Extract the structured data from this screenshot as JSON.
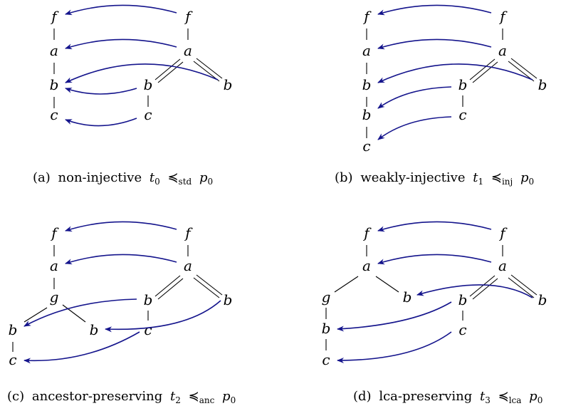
{
  "colors": {
    "arrow": "#14148c",
    "edge": "#000000",
    "background": "#ffffff"
  },
  "panels": [
    {
      "caption": {
        "tag": "(a)",
        "desc": "non-injective",
        "t": "t",
        "tsub": "0",
        "rel": "≼",
        "rsub": "std",
        "p": "p",
        "psub": "0"
      },
      "tree_t_labels": [
        "f",
        "a",
        "b",
        "c"
      ],
      "tree_p_labels": [
        "f",
        "a",
        "b",
        "b",
        "c"
      ]
    },
    {
      "caption": {
        "tag": "(b)",
        "desc": "weakly-injective",
        "t": "t",
        "tsub": "1",
        "rel": "≼",
        "rsub": "inj",
        "p": "p",
        "psub": "0"
      },
      "tree_t_labels": [
        "f",
        "a",
        "b",
        "b",
        "c"
      ],
      "tree_p_labels": [
        "f",
        "a",
        "b",
        "b",
        "c"
      ]
    },
    {
      "caption": {
        "tag": "(c)",
        "desc": "ancestor-preserving",
        "t": "t",
        "tsub": "2",
        "rel": "≼",
        "rsub": "anc",
        "p": "p",
        "psub": "0"
      },
      "tree_t_labels": [
        "f",
        "a",
        "g",
        "b",
        "b",
        "c"
      ],
      "tree_p_labels": [
        "f",
        "a",
        "b",
        "b",
        "c"
      ]
    },
    {
      "caption": {
        "tag": "(d)",
        "desc": "lca-preserving",
        "t": "t",
        "tsub": "3",
        "rel": "≼",
        "rsub": "lca",
        "p": "p",
        "psub": "0"
      },
      "tree_t_labels": [
        "f",
        "a",
        "g",
        "b",
        "b",
        "c"
      ],
      "tree_p_labels": [
        "f",
        "a",
        "b",
        "b",
        "c"
      ]
    }
  ]
}
